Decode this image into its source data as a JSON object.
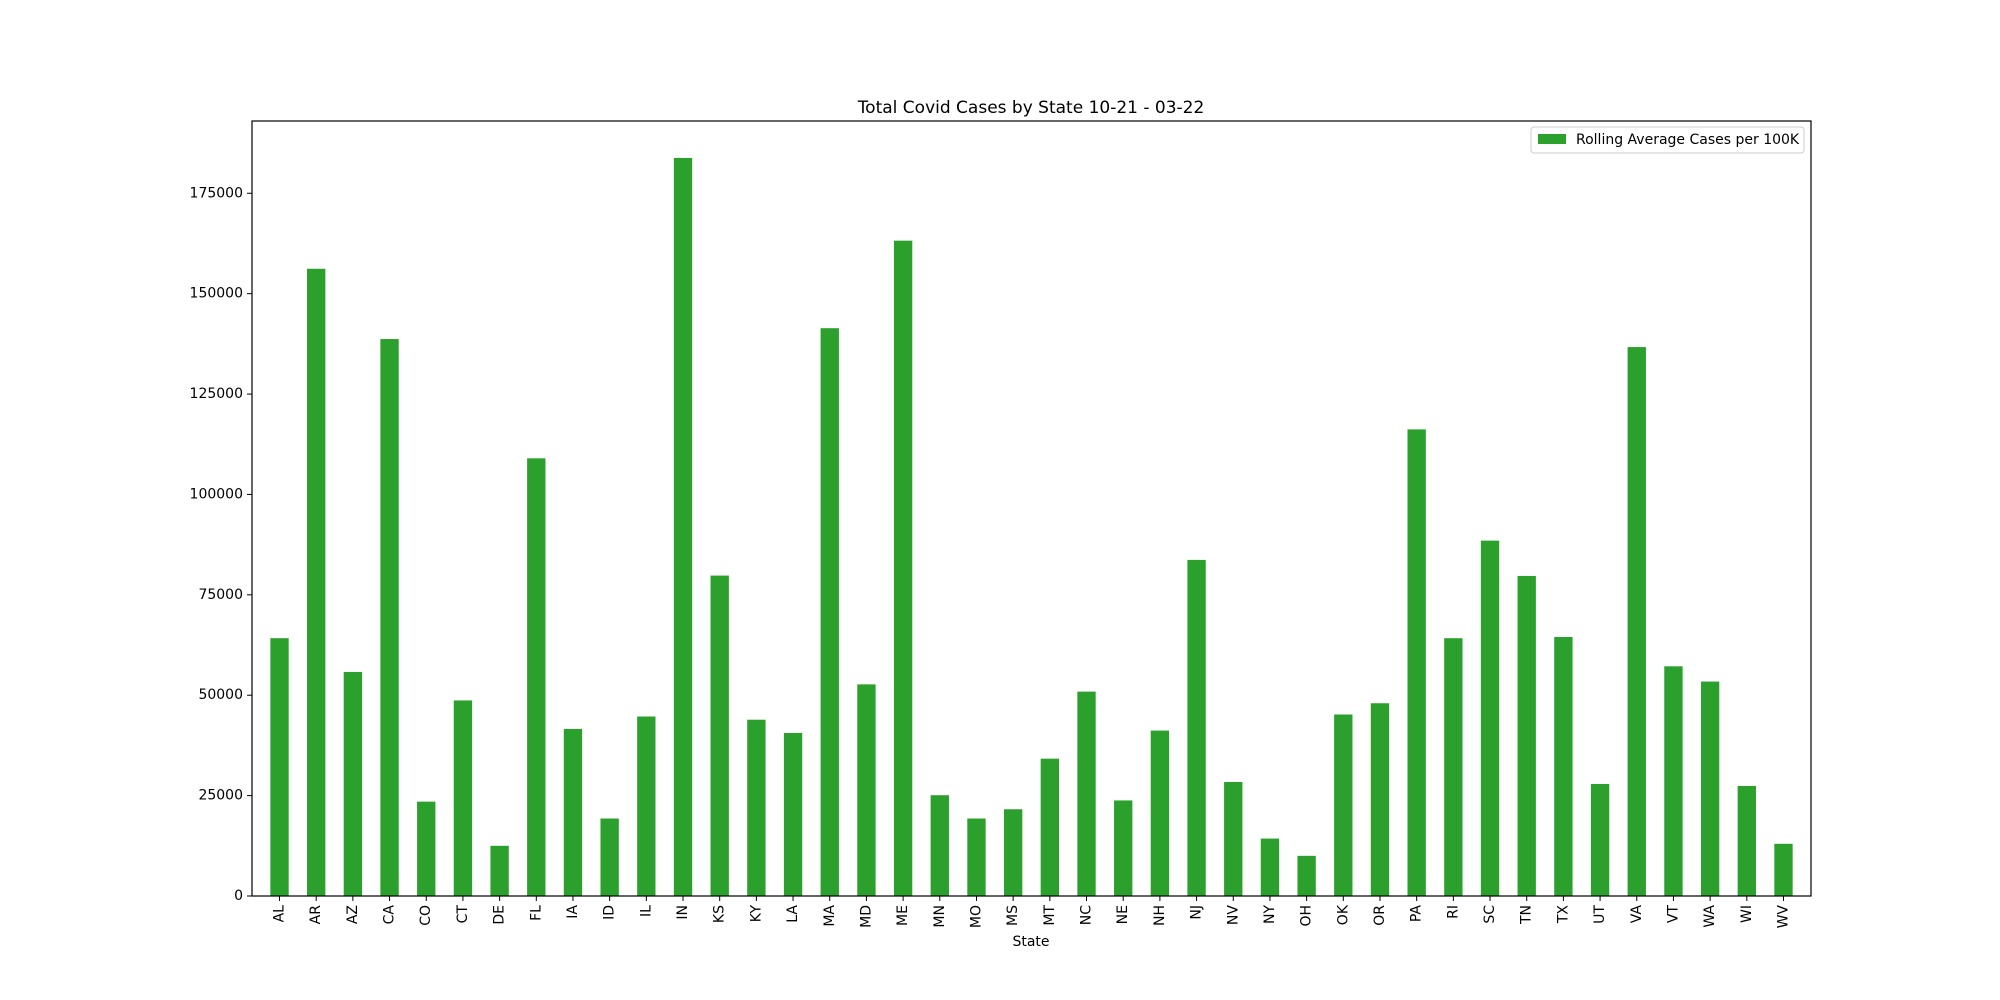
{
  "chart_data": {
    "type": "bar",
    "title": "Total Covid Cases by State 10-21 - 03-22",
    "xlabel": "State",
    "ylabel": "",
    "ylim": [
      0,
      193000
    ],
    "yticks": [
      0,
      25000,
      50000,
      75000,
      100000,
      125000,
      150000,
      175000
    ],
    "ytick_labels": [
      "0",
      "25000",
      "50000",
      "75000",
      "100000",
      "125000",
      "150000",
      "175000"
    ],
    "grid": false,
    "legend_position": "top-right",
    "categories": [
      "AL",
      "AR",
      "AZ",
      "CA",
      "CO",
      "CT",
      "DE",
      "FL",
      "IA",
      "ID",
      "IL",
      "IN",
      "KS",
      "KY",
      "LA",
      "MA",
      "MD",
      "ME",
      "MN",
      "MO",
      "MS",
      "MT",
      "NC",
      "NE",
      "NH",
      "NJ",
      "NV",
      "NY",
      "OH",
      "OK",
      "OR",
      "PA",
      "RI",
      "SC",
      "TN",
      "TX",
      "UT",
      "VA",
      "VT",
      "WA",
      "WI",
      "WV"
    ],
    "series": [
      {
        "name": "Rolling Average Cases per 100K",
        "color": "#2ca02c",
        "values": [
          64200,
          156200,
          55800,
          138700,
          23500,
          48700,
          12500,
          109000,
          41600,
          19300,
          44700,
          183800,
          79800,
          43900,
          40600,
          141400,
          52700,
          163200,
          25100,
          19300,
          21600,
          34200,
          50900,
          23800,
          41200,
          83700,
          28400,
          14300,
          10000,
          45200,
          48000,
          116200,
          64200,
          88500,
          79700,
          64500,
          27900,
          136700,
          57200,
          53400,
          27400,
          13000
        ]
      }
    ]
  }
}
